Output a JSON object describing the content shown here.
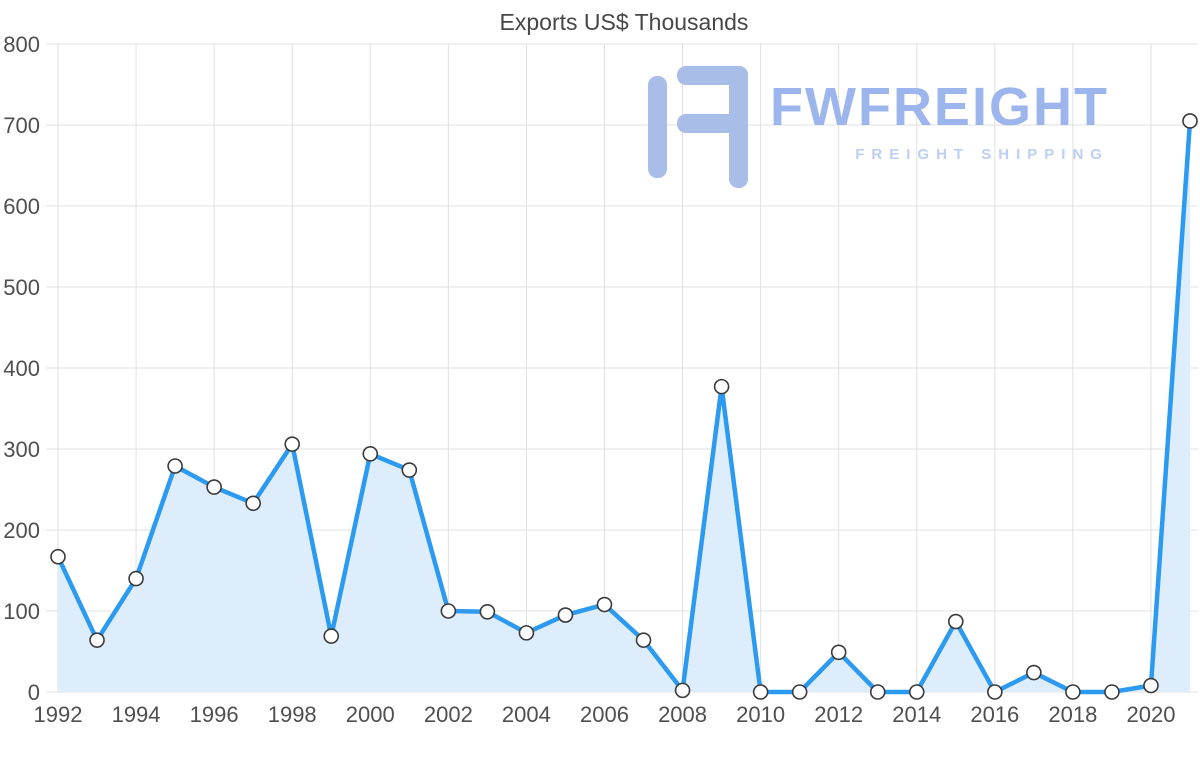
{
  "title": "Exports US$ Thousands",
  "watermark": {
    "brand": "FWFREIGHT",
    "tagline": "FREIGHT SHIPPING",
    "icon_color": "#a9bde9"
  },
  "chart_data": {
    "type": "area",
    "title": "Exports US$ Thousands",
    "x": [
      1992,
      1993,
      1994,
      1995,
      1996,
      1997,
      1998,
      1999,
      2000,
      2001,
      2002,
      2003,
      2004,
      2005,
      2006,
      2007,
      2008,
      2009,
      2010,
      2011,
      2012,
      2013,
      2014,
      2015,
      2016,
      2017,
      2018,
      2019,
      2020,
      2021
    ],
    "values": [
      167,
      64,
      140,
      279,
      253,
      233,
      306,
      69,
      294,
      274,
      100,
      99,
      73,
      95,
      108,
      64,
      2,
      377,
      0,
      0,
      49,
      0,
      0,
      87,
      0,
      24,
      0,
      0,
      8,
      705
    ],
    "xlabel": "",
    "ylabel": "",
    "ylim": [
      0,
      800
    ],
    "y_ticks": [
      0,
      100,
      200,
      300,
      400,
      500,
      600,
      700,
      800
    ],
    "x_ticks": [
      1992,
      1994,
      1996,
      1998,
      2000,
      2002,
      2004,
      2006,
      2008,
      2010,
      2012,
      2014,
      2016,
      2018,
      2020
    ],
    "grid": true,
    "legend": "none",
    "colors": {
      "line": "#2b9af0",
      "area": "#ddedfc",
      "marker_fill": "#ffffff",
      "marker_stroke": "#3a3a3a",
      "grid": "#e0e0e0",
      "axis_text": "#4f4f4f",
      "title_text": "#474747"
    }
  }
}
